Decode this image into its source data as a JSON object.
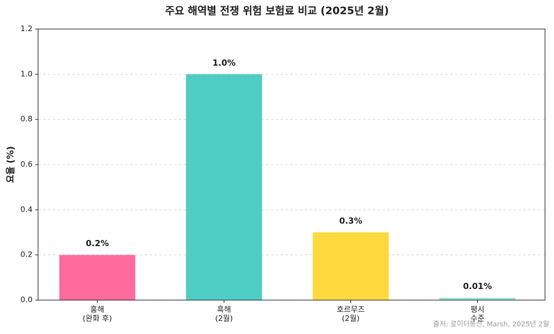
{
  "chart_data": {
    "type": "bar",
    "title": "주요 해역별 전쟁 위험 보험료 비교 (2025년 2월)",
    "ylabel": "요율 (%)",
    "categories": [
      "홍해\n(완화 후)",
      "흑해\n(2월)",
      "호르무즈\n(2월)",
      "평시\n수준"
    ],
    "values": [
      0.2,
      1.0,
      0.3,
      0.01
    ],
    "value_labels": [
      "0.2%",
      "1.0%",
      "0.3%",
      "0.01%"
    ],
    "colors": [
      "#ff6b9d",
      "#4ecdc4",
      "#ffd93d",
      "#95e1d3"
    ],
    "ylim": [
      0,
      1.2
    ],
    "yticks": [
      {
        "value": 0,
        "label": "0.0"
      },
      0.2,
      0.4,
      0.6,
      0.8,
      {
        "value": 1.0,
        "label": "1.0"
      },
      1.2
    ],
    "grid": true,
    "source": "출처: 로이터통신, Marsh, 2025년 2월"
  }
}
